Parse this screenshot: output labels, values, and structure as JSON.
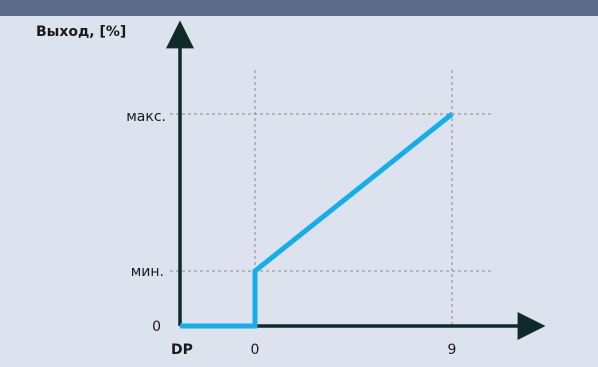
{
  "colors": {
    "header_band": "#5a6a8a",
    "background": "#dde3ee",
    "axis": "#0f2a28",
    "series": "#16aee8",
    "grid": "#8a8a8a"
  },
  "chart_data": {
    "type": "line",
    "title": "",
    "ylabel": "Выход, [%]",
    "xlabel": "",
    "origin_label": "DP",
    "y_zero_label": "0",
    "y_tick_labels": [
      "мин.",
      "макс."
    ],
    "x_tick_labels": [
      "0",
      "9"
    ],
    "grid": "dashed guides at 0, 9, мин., макс.",
    "series": [
      {
        "points": [
          {
            "x": "DP",
            "y": "0"
          },
          {
            "x": "0",
            "y": "0"
          },
          {
            "x": "0",
            "y": "мин."
          },
          {
            "x": "9",
            "y": "макс."
          }
        ]
      }
    ]
  }
}
